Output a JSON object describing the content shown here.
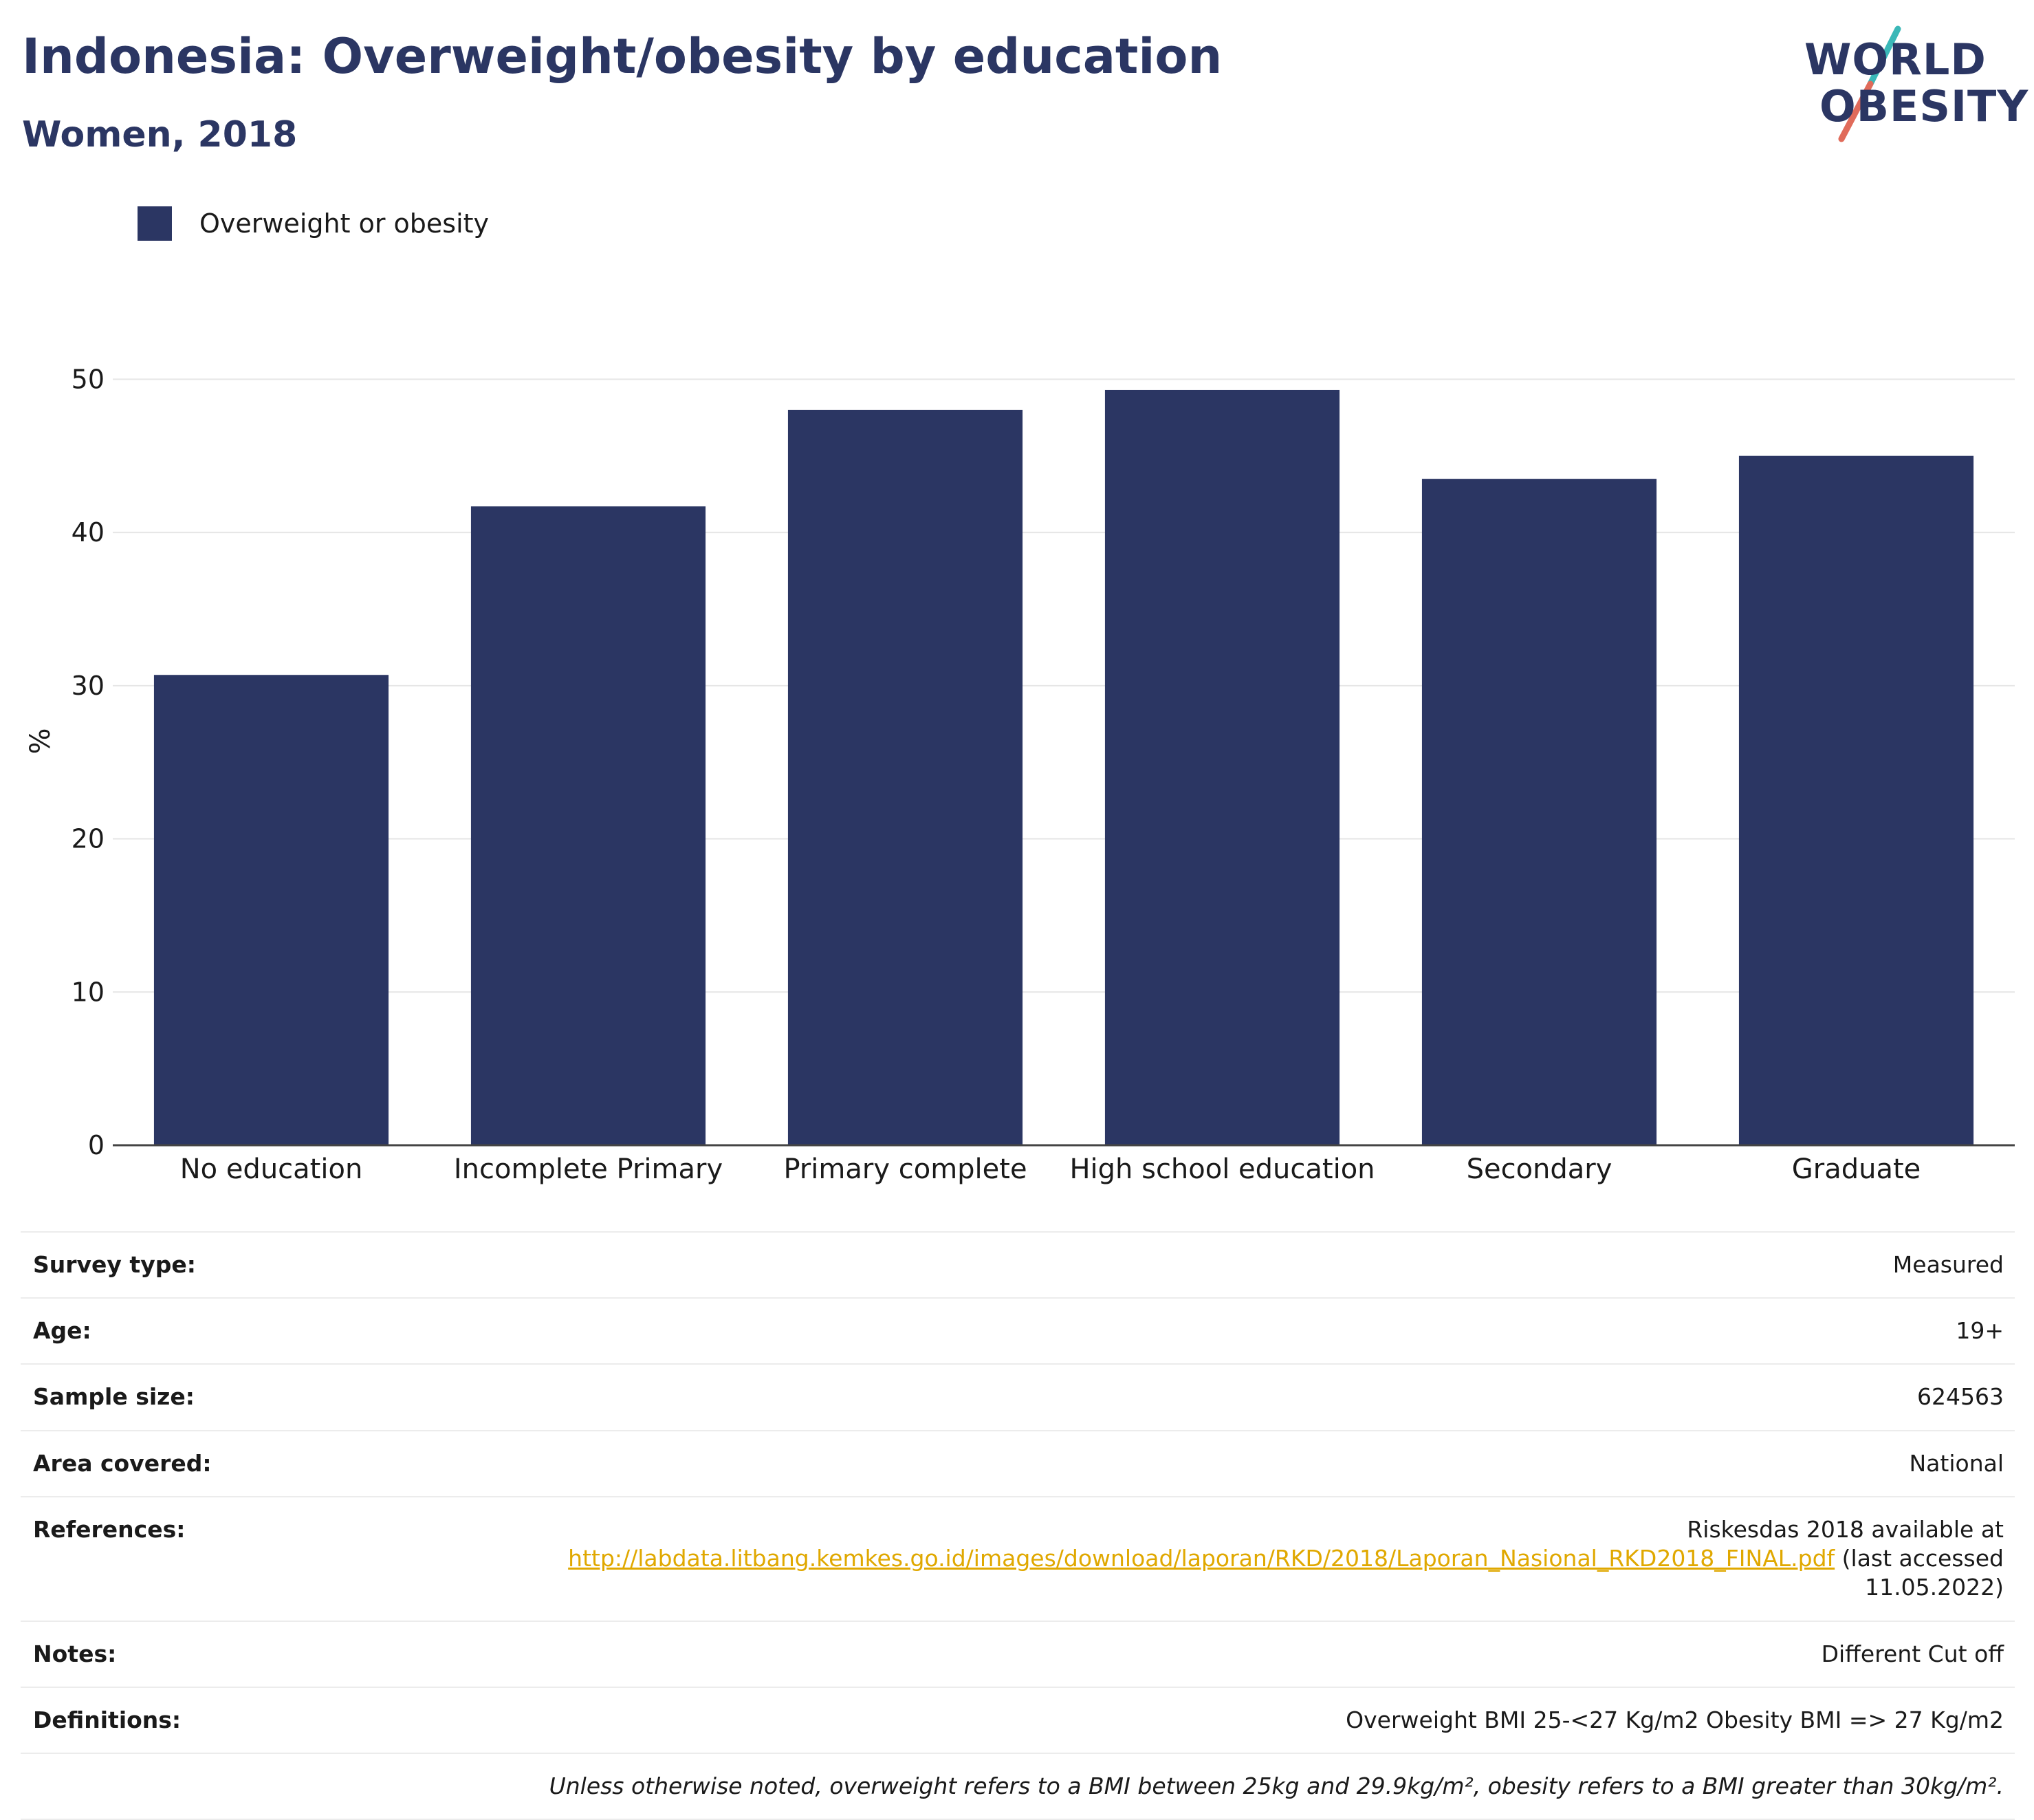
{
  "header": {
    "title": "Indonesia: Overweight/obesity by education",
    "subtitle": "Women, 2018"
  },
  "logo": {
    "line1": "WORLD",
    "line2": "OBESITY",
    "text_color": "#2b3663",
    "slash_colors": [
      "#3bb8b8",
      "#e06b5a"
    ]
  },
  "legend": {
    "label": "Overweight or obesity",
    "color": "#2b3663"
  },
  "chart_data": {
    "type": "bar",
    "categories": [
      "No education",
      "Incomplete Primary",
      "Primary complete",
      "High school education",
      "Secondary",
      "Graduate"
    ],
    "series": [
      {
        "name": "Overweight or obesity",
        "values": [
          30.7,
          41.7,
          48.0,
          49.3,
          43.5,
          45.0
        ],
        "color": "#2b3663"
      }
    ],
    "ylabel": "%",
    "xlabel": "",
    "ylim": [
      0,
      55
    ],
    "yticks": [
      0,
      10,
      20,
      30,
      40,
      50
    ],
    "grid": true,
    "legend_position": "top-left"
  },
  "info": {
    "survey_type_label": "Survey type:",
    "survey_type_value": "Measured",
    "age_label": "Age:",
    "age_value": "19+",
    "sample_size_label": "Sample size:",
    "sample_size_value": "624563",
    "area_label": "Area covered:",
    "area_value": "National",
    "references_label": "References:",
    "references_line1": "Riskesdas 2018 available at",
    "references_link": "http://labdata.litbang.kemkes.go.id/images/download/laporan/RKD/2018/Laporan_Nasional_RKD2018_FINAL.pdf",
    "references_after": " (last accessed",
    "references_date": "11.05.2022)",
    "notes_label": "Notes:",
    "notes_value": "Different Cut off",
    "definitions_label": "Definitions:",
    "definitions_value": "Overweight BMI 25-<27 Kg/m2 Obesity BMI => 27 Kg/m2",
    "footnote": "Unless otherwise noted, overweight refers to a BMI between 25kg and 29.9kg/m², obesity refers to a BMI greater than 30kg/m²."
  }
}
